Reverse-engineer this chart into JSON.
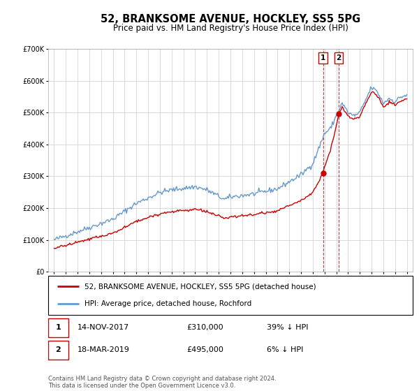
{
  "title": "52, BRANKSOME AVENUE, HOCKLEY, SS5 5PG",
  "subtitle": "Price paid vs. HM Land Registry's House Price Index (HPI)",
  "legend1": "52, BRANKSOME AVENUE, HOCKLEY, SS5 5PG (detached house)",
  "legend2": "HPI: Average price, detached house, Rochford",
  "annotation1_date": "14-NOV-2017",
  "annotation1_price": 310000,
  "annotation1_pct": "39% ↓ HPI",
  "annotation2_date": "18-MAR-2019",
  "annotation2_price": 495000,
  "annotation2_pct": "6% ↓ HPI",
  "footer": "Contains HM Land Registry data © Crown copyright and database right 2024.\nThis data is licensed under the Open Government Licence v3.0.",
  "hpi_color": "#6699cc",
  "price_color": "#cc0000",
  "vline_color": "#cc0000",
  "ylim_max": 700000,
  "t1": 2017.87,
  "t2": 2019.21,
  "p1": 310000,
  "p2": 495000,
  "hpi_seed": 42
}
